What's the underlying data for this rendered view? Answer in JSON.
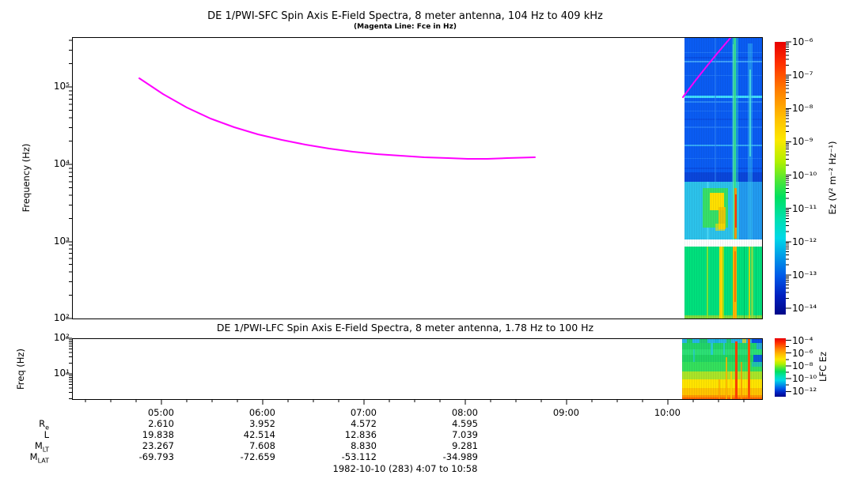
{
  "titles": {
    "sfc": "DE 1/PWI-SFC  Spin Axis E-Field Spectra, 8 meter antenna, 104 Hz to 409 kHz",
    "sfc_sub": "(Magenta Line: Fce in Hz)",
    "lfc": "DE 1/PWI-LFC  Spin Axis E-Field Spectra, 8 meter antenna, 1.78 Hz to 100 Hz"
  },
  "footer": {
    "date": "1982-10-10 (283) 4:07 to 10:58"
  },
  "axes": {
    "sfc_ylabel": "Frequency (Hz)",
    "sfc_yticks": [
      "10⁵",
      "10⁴",
      "10³",
      "10²"
    ],
    "lfc_ylabel": "Freq (Hz)",
    "lfc_yticks": [
      "10²",
      "10¹"
    ],
    "x_ticks": [
      "05:00",
      "06:00",
      "07:00",
      "08:00",
      "09:00",
      "10:00"
    ]
  },
  "colorbars": {
    "sfc": {
      "label": "Ez (V² m⁻² Hz⁻¹)",
      "ticks": [
        "10⁻⁶",
        "10⁻⁷",
        "10⁻⁸",
        "10⁻⁹",
        "10⁻¹⁰",
        "10⁻¹¹",
        "10⁻¹²",
        "10⁻¹³",
        "10⁻¹⁴"
      ]
    },
    "lfc": {
      "label": "LFC Ez",
      "ticks": [
        "10⁻⁴",
        "10⁻⁶",
        "10⁻⁸",
        "10⁻¹⁰",
        "10⁻¹²"
      ]
    }
  },
  "ephemeris": {
    "row_labels": [
      {
        "main": "R",
        "sub": "e"
      },
      {
        "main": "L",
        "sub": ""
      },
      {
        "main": "M",
        "sub": "LT"
      },
      {
        "main": "M",
        "sub": "LAT"
      }
    ],
    "columns": [
      {
        "time": "05:00",
        "values": [
          "2.610",
          "19.838",
          "23.267",
          "-69.793"
        ]
      },
      {
        "time": "06:00",
        "values": [
          "3.952",
          "42.514",
          "7.608",
          "-72.659"
        ]
      },
      {
        "time": "07:00",
        "values": [
          "4.572",
          "12.836",
          "8.830",
          "-53.112"
        ]
      },
      {
        "time": "08:00",
        "values": [
          "4.595",
          "7.039",
          "9.281",
          "-34.989"
        ]
      },
      {
        "time": "09:00",
        "values": []
      },
      {
        "time": "10:00",
        "values": []
      }
    ]
  },
  "colors": {
    "magenta_line": "#ff00ff",
    "axis": "#000000",
    "spectro_blue": "#0a5cf2",
    "spectro_cyan": "#2cc2ea",
    "spectro_green": "#00e07c"
  },
  "chart_data": [
    {
      "type": "line",
      "name": "Fce (electron cyclotron frequency)",
      "panel": "SFC",
      "title": "DE 1/PWI-SFC  Spin Axis E-Field Spectra, 8 meter antenna, 104 Hz to 409 kHz",
      "xlabel": "UT (1982-10-10, day 283, 4:07 to 10:58)",
      "ylabel": "Frequency (Hz)",
      "ylim_hz": [
        100,
        409000
      ],
      "yscale": "log",
      "grid": false,
      "legend": "subtitle: (Magenta Line: Fce in Hz)",
      "x": [
        "04:48",
        "05:00",
        "05:30",
        "06:00",
        "06:30",
        "07:00",
        "07:30",
        "08:00",
        "08:20",
        "08:41"
      ],
      "y_hz": [
        135000,
        95000,
        60000,
        38000,
        26000,
        19500,
        15500,
        13000,
        12200,
        12500
      ],
      "segment2_x": [
        "10:09",
        "10:18",
        "10:27",
        "10:33",
        "10:37"
      ],
      "segment2_y_hz": [
        76000,
        125000,
        215000,
        320000,
        410000
      ],
      "color": "#ff00ff"
    },
    {
      "type": "heatmap",
      "name": "SFC E-field spectrogram",
      "time_range": [
        "10:10",
        "10:58"
      ],
      "freq_range_hz": [
        104,
        409000
      ],
      "value_units": "V² m⁻² Hz⁻¹",
      "value_range": [
        1e-14,
        1e-06
      ],
      "features": [
        "blue background (~1e-12) above ~2 kHz",
        "cyan band (~1e-11) between ~1 and 8 kHz",
        "green band (~1e-11) below ~900 Hz",
        "white data gap near 900 Hz",
        "green-yellow emission blob 2-6 kHz around 10:25-10:32",
        "intense vertical broadband bursts near 10:42 and 10:52",
        "narrow cyan horizontal lines near 30 kHz and 90 kHz"
      ]
    },
    {
      "type": "heatmap",
      "name": "LFC E-field spectrogram",
      "time_range": [
        "10:08",
        "10:58"
      ],
      "freq_range_hz": [
        1.78,
        100
      ],
      "value_units": "LFC Ez",
      "value_range": [
        1e-12,
        0.0001
      ],
      "features": [
        "power increases toward lower frequency: green (~1e-8) at tens of Hz grading to yellow/orange (~1e-5) below ~4 Hz",
        "red broadband bursts near 10:42 and 10:50",
        "blue low-power patches at the right edge of upper rows"
      ]
    }
  ],
  "spectra": {
    "fce_line_px": "176,99 206,119 236,136 266,150 296,161 326,170 356,177 386,183 416,188 446,192 476,195 506,197 536,199 566,200 591,201 616,201 641,200 676,199",
    "fce_line2_px": "863,123 878,103 893,84 906,68 917,55 923,48",
    "sfc_rects": [
      [
        865,
        47,
        98,
        183,
        "#0a5cf2",
        1
      ],
      [
        865,
        218,
        98,
        12,
        "#0a46da",
        1
      ],
      [
        865,
        230,
        98,
        73,
        "#2cc2ea",
        1
      ],
      [
        934,
        230,
        29,
        73,
        "#2090f0",
        0.8
      ],
      [
        865,
        72,
        98,
        2,
        "#0846d8",
        0.6
      ],
      [
        865,
        150,
        98,
        2,
        "#0846d8",
        0.5
      ],
      [
        865,
        212,
        98,
        2,
        "#0846d8",
        0.6
      ],
      [
        865,
        66,
        98,
        1,
        "#2f86f8",
        0.6
      ],
      [
        865,
        77,
        98,
        2,
        "#44a4fa",
        0.9
      ],
      [
        865,
        95,
        98,
        1,
        "#2f86f8",
        0.5
      ],
      [
        865,
        121,
        98,
        3,
        "#42e2fa",
        0.95
      ],
      [
        865,
        128,
        98,
        2,
        "#3090f8",
        0.8
      ],
      [
        865,
        140,
        98,
        1,
        "#2f86f8",
        0.5
      ],
      [
        865,
        160,
        98,
        2,
        "#2f86f8",
        0.6
      ],
      [
        865,
        183,
        98,
        2,
        "#3cb4f8",
        0.85
      ],
      [
        865,
        200,
        98,
        1,
        "#2f86f8",
        0.5
      ],
      [
        903,
        47,
        2,
        183,
        "#2f86f8",
        0.5
      ],
      [
        925,
        47,
        8,
        256,
        "#30d8c8",
        0.45
      ],
      [
        927,
        47,
        3,
        256,
        "#38e88a",
        0.85
      ],
      [
        926,
        56,
        1,
        247,
        "#80f0c0",
        0.5
      ],
      [
        945,
        55,
        6,
        248,
        "#38c4f2",
        0.45
      ],
      [
        947,
        88,
        2,
        110,
        "#50e8d8",
        0.75
      ],
      [
        893,
        230,
        3,
        73,
        "#52dcf8",
        0.6
      ],
      [
        888,
        238,
        32,
        50,
        "#38e060",
        0.95
      ],
      [
        897,
        244,
        18,
        22,
        "#ffe000",
        1
      ],
      [
        908,
        262,
        9,
        28,
        "#f5c400",
        0.9
      ],
      [
        904,
        283,
        12,
        9,
        "#ffe000",
        0.6
      ],
      [
        928,
        238,
        3,
        64,
        "#ff9000",
        0.95
      ],
      [
        929,
        246,
        2,
        42,
        "#ff3800",
        1
      ],
      [
        865,
        303,
        98,
        9,
        "#ffffff",
        1
      ],
      [
        865,
        312,
        98,
        91,
        "#00e07c",
        1
      ],
      [
        865,
        399,
        98,
        4,
        "#ffd000",
        0.5
      ],
      [
        893,
        312,
        2,
        91,
        "#90e428",
        0.85
      ],
      [
        909,
        312,
        4,
        91,
        "#ffd800",
        1
      ],
      [
        913,
        312,
        2,
        91,
        "#c0e400",
        0.75
      ],
      [
        926,
        312,
        5,
        91,
        "#ffb400",
        1
      ],
      [
        928,
        318,
        2,
        64,
        "#ff7800",
        1
      ],
      [
        940,
        312,
        1,
        91,
        "#00b85c",
        0.7
      ],
      [
        946,
        312,
        2,
        91,
        "#e8dc00",
        0.85
      ],
      [
        949,
        312,
        3,
        91,
        "#90e040",
        0.8
      ],
      [
        955,
        312,
        1,
        91,
        "#00c064",
        0.5
      ]
    ],
    "lfc_rects": [
      [
        862,
        428,
        101,
        6,
        "#28b4e8",
        1
      ],
      [
        862,
        434,
        101,
        8,
        "#22d468",
        1
      ],
      [
        862,
        442,
        101,
        7,
        "#2ce074",
        1
      ],
      [
        862,
        449,
        101,
        9,
        "#20d462",
        1
      ],
      [
        862,
        458,
        101,
        12,
        "#34e05c",
        1
      ],
      [
        862,
        470,
        101,
        10,
        "#aae428",
        1
      ],
      [
        862,
        480,
        101,
        11,
        "#ffe400",
        1
      ],
      [
        862,
        491,
        101,
        9,
        "#ffc400",
        1
      ],
      [
        862,
        500,
        101,
        5,
        "#ff9400",
        1
      ],
      [
        862,
        503,
        101,
        2,
        "#ff6400",
        1
      ],
      [
        868,
        428,
        7,
        6,
        "#20cc60",
        0.9
      ],
      [
        884,
        428,
        10,
        6,
        "#20cc60",
        0.85
      ],
      [
        903,
        428,
        5,
        6,
        "#18b0e0",
        0.9
      ],
      [
        918,
        428,
        6,
        6,
        "#20cc60",
        0.8
      ],
      [
        938,
        428,
        5,
        6,
        "#ffd800",
        0.7
      ],
      [
        950,
        428,
        13,
        6,
        "#0a50e8",
        1
      ],
      [
        952,
        449,
        11,
        9,
        "#0a50e8",
        0.9
      ],
      [
        956,
        434,
        7,
        8,
        "#28a0e8",
        0.8
      ],
      [
        950,
        458,
        13,
        6,
        "#18b0e0",
        0.6
      ],
      [
        898,
        434,
        3,
        15,
        "#28c8e8",
        0.8
      ],
      [
        914,
        434,
        2,
        15,
        "#28c8e8",
        0.7
      ],
      [
        876,
        442,
        2,
        16,
        "#28c8e8",
        0.6
      ],
      [
        929,
        432,
        3,
        73,
        "#ff4000",
        1
      ],
      [
        945,
        428,
        3,
        77,
        "#ff5400",
        1
      ],
      [
        917,
        452,
        2,
        53,
        "#ffb000",
        0.85
      ],
      [
        936,
        458,
        2,
        47,
        "#ff9800",
        0.75
      ],
      [
        923,
        470,
        2,
        35,
        "#ffd000",
        0.8
      ],
      [
        908,
        480,
        2,
        25,
        "#ff9800",
        0.6
      ]
    ]
  }
}
